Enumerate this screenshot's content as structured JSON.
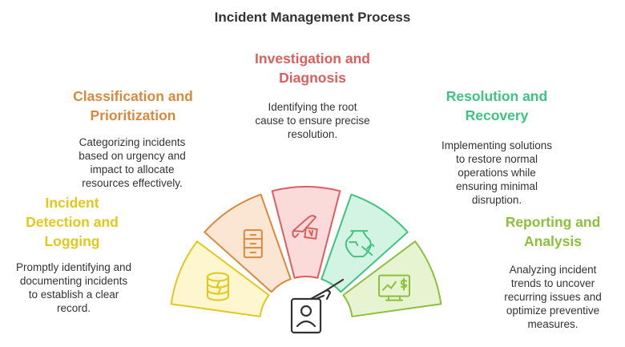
{
  "title": "Incident Management Process",
  "steps": [
    {
      "title": "Incident\nDetection and\nLogging",
      "description": "Promptly identifying and\ndocumenting incidents\nto establish a clear\nrecord.",
      "color": "#e1c81a",
      "fill": "#fdf6cf",
      "icon": "database-icon"
    },
    {
      "title": "Classification and\nPrioritization",
      "description": "Categorizing incidents\nbased on urgency and\nimpact to allocate\nresources effectively.",
      "color": "#d9893d",
      "fill": "#fbe6d3",
      "icon": "filing-cabinet-icon"
    },
    {
      "title": "Investigation and\nDiagnosis",
      "description": "Identifying the root\ncause to ensure precise\nresolution.",
      "color": "#d9605e",
      "fill": "#fbdada",
      "icon": "scalpel-icon"
    },
    {
      "title": "Resolution and\nRecovery",
      "description": "Implementing solutions\nto restore normal\noperations while\nensuring minimal\ndisruption.",
      "color": "#3ec381",
      "fill": "#d4f4e3",
      "icon": "vase-repair-icon"
    },
    {
      "title": "Reporting and\nAnalysis",
      "description": "Analyzing incident\ntrends to uncover\nrecurring issues and\noptimize preventive\nmeasures.",
      "color": "#8cbf3c",
      "fill": "#e7f4d1",
      "icon": "chart-monitor-icon"
    }
  ],
  "center_icon": "id-badge-hand-icon"
}
